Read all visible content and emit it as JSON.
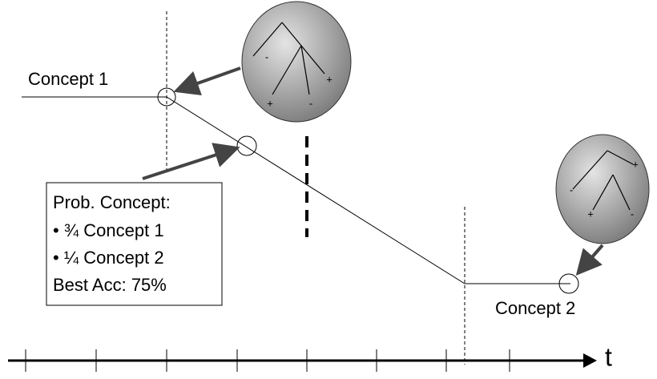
{
  "labels": {
    "concept_1": "Concept 1",
    "concept_2": "Concept 2",
    "axis": "t"
  },
  "box": {
    "lines": [
      "Prob. Concept:",
      "• ¾ Concept 1",
      "• ¼ Concept 2",
      "Best Acc: 75%"
    ]
  },
  "trees": [
    {
      "signs": [
        "-",
        "+",
        "+",
        "-"
      ]
    },
    {
      "signs": [
        "+",
        "-",
        "+",
        "-"
      ]
    }
  ]
}
